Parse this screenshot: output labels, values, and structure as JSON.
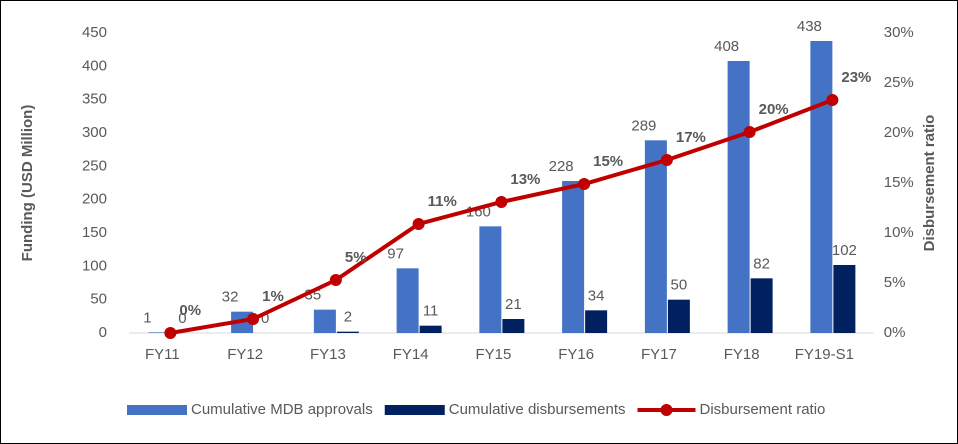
{
  "chart_data": {
    "type": "bar",
    "categories": [
      "FY11",
      "FY12",
      "FY13",
      "FY14",
      "FY15",
      "FY16",
      "FY17",
      "FY18",
      "FY19-S1"
    ],
    "series": [
      {
        "name": "Cumulative MDB approvals",
        "color": "#4472c4",
        "values": [
          1,
          32,
          35,
          97,
          160,
          228,
          289,
          408,
          438
        ]
      },
      {
        "name": "Cumulative disbursements",
        "color": "#002060",
        "values": [
          0,
          0,
          2,
          11,
          21,
          34,
          50,
          82,
          102
        ]
      },
      {
        "name": "Disbursement ratio",
        "color": "#c00000",
        "type": "line",
        "axis": "y2",
        "values": [
          0,
          1.4,
          5.3,
          10.9,
          13.1,
          14.9,
          17.3,
          20.1,
          23.3
        ],
        "value_labels": [
          "0%",
          "1%",
          "5%",
          "11%",
          "13%",
          "15%",
          "17%",
          "20%",
          "23%"
        ]
      }
    ],
    "ylabel": "Funding (USD Million)",
    "y2label": "Disbursement ratio",
    "ylim": [
      0,
      450
    ],
    "yticks": [
      0,
      50,
      100,
      150,
      200,
      250,
      300,
      350,
      400,
      450
    ],
    "y2lim": [
      0,
      30
    ],
    "y2ticks": [
      {
        "value": 0,
        "label": "0%"
      },
      {
        "value": 5,
        "label": "5%"
      },
      {
        "value": 10,
        "label": "10%"
      },
      {
        "value": 15,
        "label": "15%"
      },
      {
        "value": 20,
        "label": "20%"
      },
      {
        "value": 25,
        "label": "25%"
      },
      {
        "value": 30,
        "label": "30%"
      }
    ],
    "legend": "bottom"
  }
}
